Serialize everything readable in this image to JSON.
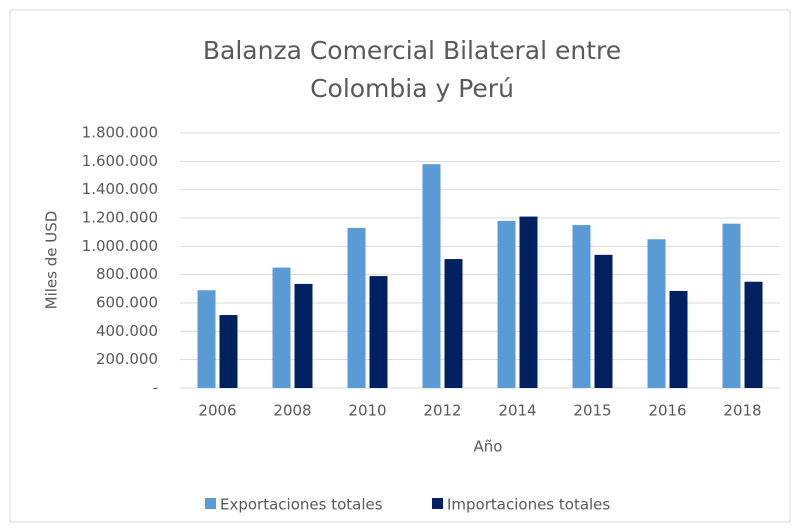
{
  "chart_data": {
    "type": "bar",
    "title": [
      "Balanza Comercial Bilateral entre",
      "Colombia y Perú"
    ],
    "xlabel": "Año",
    "ylabel": "Miles de USD",
    "categories": [
      "2006",
      "2008",
      "2010",
      "2012",
      "2014",
      "2015",
      "2016",
      "2018"
    ],
    "series": [
      {
        "name": "Exportaciones totales",
        "color": "#5b9bd5",
        "values": [
          690000,
          850000,
          1130000,
          1580000,
          1180000,
          1150000,
          1050000,
          1160000
        ]
      },
      {
        "name": "Importaciones totales",
        "color": "#002060",
        "values": [
          515000,
          735000,
          790000,
          910000,
          1210000,
          940000,
          685000,
          750000
        ]
      }
    ],
    "ylim": [
      0,
      1800000
    ],
    "yticks": [
      {
        "value": 0,
        "label": "-"
      },
      {
        "value": 200000,
        "label": "200.000"
      },
      {
        "value": 400000,
        "label": "400.000"
      },
      {
        "value": 600000,
        "label": "600.000"
      },
      {
        "value": 800000,
        "label": "800.000"
      },
      {
        "value": 1000000,
        "label": "1.000.000"
      },
      {
        "value": 1200000,
        "label": "1.200.000"
      },
      {
        "value": 1400000,
        "label": "1.400.000"
      },
      {
        "value": 1600000,
        "label": "1.600.000"
      },
      {
        "value": 1800000,
        "label": "1.800.000"
      }
    ],
    "grid": true,
    "legend": "bottom"
  }
}
